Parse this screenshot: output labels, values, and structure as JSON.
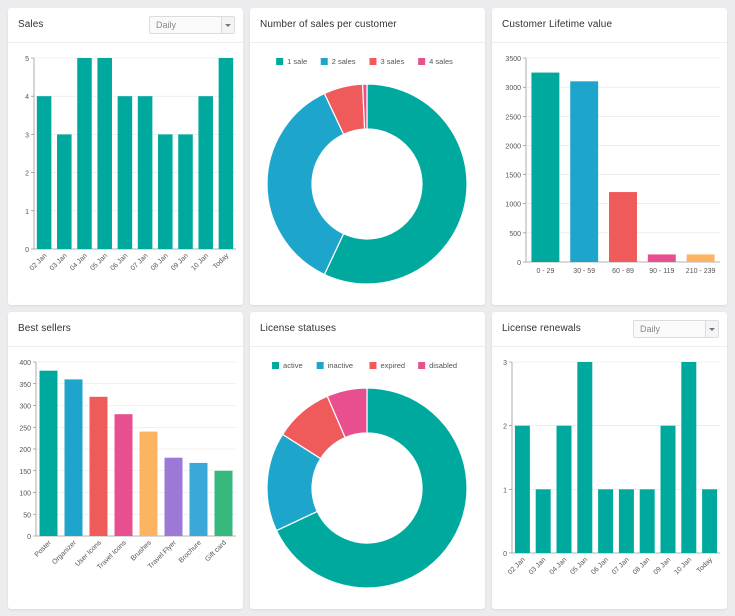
{
  "colors": {
    "teal": "#00a99d",
    "blue": "#1ea5cc",
    "red": "#ef5a5a",
    "pink": "#e84f8f",
    "orange": "#fdb462",
    "purple": "#9d78d6",
    "lightblue": "#3aa9d8",
    "green": "#35b97d",
    "axis": "#777777",
    "grid": "#e4e4e4"
  },
  "cards": {
    "sales": {
      "title": "Sales",
      "select_value": "Daily"
    },
    "sales_per_customer": {
      "title": "Number of sales per customer"
    },
    "lifetime": {
      "title": "Customer Lifetime value"
    },
    "best_sellers": {
      "title": "Best sellers"
    },
    "license_statuses": {
      "title": "License statuses"
    },
    "renewals": {
      "title": "License renewals",
      "select_value": "Daily"
    }
  },
  "chart_data": [
    {
      "id": "sales",
      "type": "bar",
      "categories": [
        "02 Jan",
        "03 Jan",
        "04 Jan",
        "05 Jan",
        "06 Jan",
        "07 Jan",
        "08 Jan",
        "09 Jan",
        "10 Jan",
        "Today"
      ],
      "values": [
        4,
        3,
        5,
        5,
        4,
        4,
        3,
        3,
        4,
        5
      ],
      "ylim": [
        0,
        5
      ],
      "yticks": [
        0,
        1,
        2,
        3,
        4,
        5
      ],
      "color": "teal"
    },
    {
      "id": "sales_per_customer",
      "type": "pie",
      "legend": [
        "1 sale",
        "2 sales",
        "3 sales",
        "4 sales"
      ],
      "values": [
        57,
        36,
        6.3,
        0.7
      ],
      "slice_colors": [
        "teal",
        "blue",
        "red",
        "pink"
      ]
    },
    {
      "id": "lifetime",
      "type": "bar",
      "categories": [
        "0 - 29",
        "30 - 59",
        "60 - 89",
        "90 - 119",
        "210 - 239"
      ],
      "values": [
        3250,
        3100,
        1200,
        130,
        130
      ],
      "ylim": [
        0,
        3500
      ],
      "yticks": [
        0,
        500,
        1000,
        1500,
        2000,
        2500,
        3000,
        3500
      ],
      "bar_colors": [
        "teal",
        "blue",
        "red",
        "pink",
        "orange"
      ]
    },
    {
      "id": "best_sellers",
      "type": "bar",
      "categories": [
        "Poster",
        "Organizer",
        "User Icons",
        "Travel Icons",
        "Brushes",
        "Travel Flyer",
        "Brochure",
        "Gift card"
      ],
      "values": [
        380,
        360,
        320,
        280,
        240,
        180,
        168,
        150
      ],
      "ylim": [
        0,
        400
      ],
      "yticks": [
        0,
        50,
        100,
        150,
        200,
        250,
        300,
        350,
        400
      ],
      "bar_colors": [
        "teal",
        "blue",
        "red",
        "pink",
        "orange",
        "purple",
        "lightblue",
        "green"
      ]
    },
    {
      "id": "license_statuses",
      "type": "pie",
      "legend": [
        "active",
        "inactive",
        "expired",
        "disabled"
      ],
      "values": [
        68,
        16,
        9.5,
        6.5
      ],
      "slice_colors": [
        "teal",
        "blue",
        "red",
        "pink"
      ]
    },
    {
      "id": "renewals",
      "type": "bar",
      "categories": [
        "02 Jan",
        "03 Jan",
        "04 Jan",
        "05 Jan",
        "06 Jan",
        "07 Jan",
        "08 Jan",
        "09 Jan",
        "10 Jan",
        "Today"
      ],
      "values": [
        2,
        1,
        2,
        3,
        1,
        1,
        1,
        2,
        3,
        1
      ],
      "ylim": [
        0,
        3
      ],
      "yticks": [
        0,
        1,
        2,
        3
      ],
      "color": "teal"
    }
  ]
}
